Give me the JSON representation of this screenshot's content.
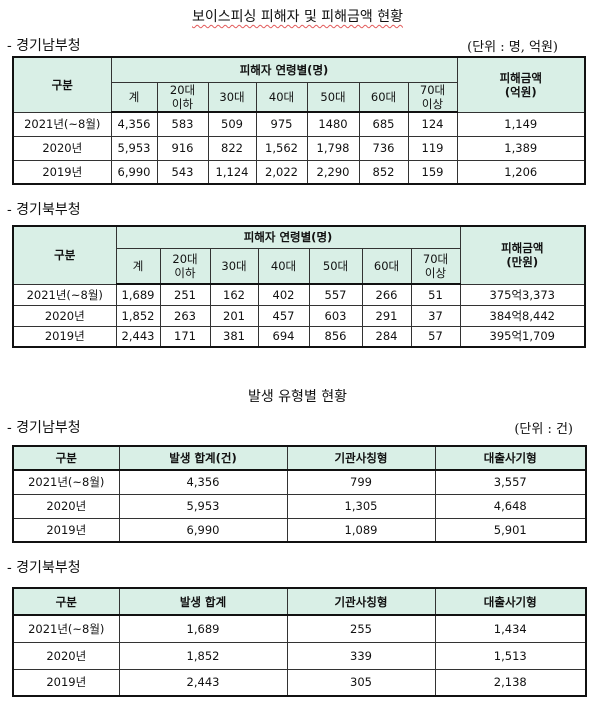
{
  "page_title": "보이스피싱 피해자 및 피해금액 현황",
  "section2_title": "발생 유형별 현황",
  "south": {
    "label": "- 경기남부청",
    "unit": "(단위 : 명, 억원)",
    "header": {
      "gubun": "구분",
      "group": "피해자 연령별(명)",
      "amount": "피해금액\n(억원)",
      "cols": [
        "계",
        "20대\n이하",
        "30대",
        "40대",
        "50대",
        "60대",
        "70대\n이상"
      ]
    },
    "rows": [
      {
        "year": "2021년(~8월)",
        "vals": [
          "4,356",
          "583",
          "509",
          "975",
          "1480",
          "685",
          "124"
        ],
        "amount": "1,149"
      },
      {
        "year": "2020년",
        "vals": [
          "5,953",
          "916",
          "822",
          "1,562",
          "1,798",
          "736",
          "119"
        ],
        "amount": "1,389"
      },
      {
        "year": "2019년",
        "vals": [
          "6,990",
          "543",
          "1,124",
          "2,022",
          "2,290",
          "852",
          "159"
        ],
        "amount": "1,206"
      }
    ]
  },
  "north": {
    "label": "- 경기북부청",
    "header": {
      "gubun": "구분",
      "group": "피해자 연령별(명)",
      "amount": "피해금액\n(만원)",
      "cols": [
        "계",
        "20대\n이하",
        "30대",
        "40대",
        "50대",
        "60대",
        "70대\n이상"
      ]
    },
    "rows": [
      {
        "year": "2021년(~8월)",
        "vals": [
          "1,689",
          "251",
          "162",
          "402",
          "557",
          "266",
          "51"
        ],
        "amount": "375억3,373"
      },
      {
        "year": "2020년",
        "vals": [
          "1,852",
          "263",
          "201",
          "457",
          "603",
          "291",
          "37"
        ],
        "amount": "384억8,442"
      },
      {
        "year": "2019년",
        "vals": [
          "2,443",
          "171",
          "381",
          "694",
          "856",
          "284",
          "57"
        ],
        "amount": "395억1,709"
      }
    ]
  },
  "type_south": {
    "label": "- 경기남부청",
    "unit": "(단위 : 건)",
    "header": [
      "구분",
      "발생 합계(건)",
      "기관사칭형",
      "대출사기형"
    ],
    "rows": [
      [
        "2021년(~8월)",
        "4,356",
        "799",
        "3,557"
      ],
      [
        "2020년",
        "5,953",
        "1,305",
        "4,648"
      ],
      [
        "2019년",
        "6,990",
        "1,089",
        "5,901"
      ]
    ]
  },
  "type_north": {
    "label": "- 경기북부청",
    "header": [
      "구분",
      "발생 합계",
      "기관사칭형",
      "대출사기형"
    ],
    "rows": [
      [
        "2021년(~8월)",
        "1,689",
        "255",
        "1,434"
      ],
      [
        "2020년",
        "1,852",
        "339",
        "1,513"
      ],
      [
        "2019년",
        "2,443",
        "305",
        "2,138"
      ]
    ]
  }
}
